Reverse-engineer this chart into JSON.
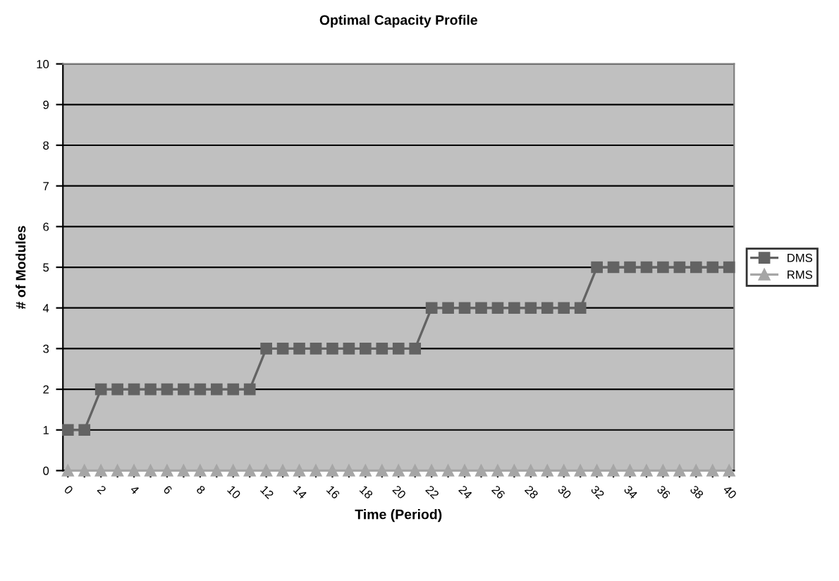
{
  "chart_data": {
    "type": "line",
    "title": "Optimal Capacity Profile",
    "xlabel": "Time (Period)",
    "ylabel": "# of Modules",
    "categories": [
      "0",
      null,
      "2",
      null,
      "4",
      null,
      "6",
      null,
      "8",
      null,
      "10",
      null,
      "12",
      null,
      "14",
      null,
      "16",
      null,
      "18",
      null,
      "20",
      null,
      "22",
      null,
      "24",
      null,
      "26",
      null,
      "28",
      null,
      "30",
      null,
      "32",
      null,
      "34",
      null,
      "36",
      null,
      "38",
      null,
      "40"
    ],
    "series": [
      {
        "name": "DMS",
        "color": "#636363",
        "marker": "square",
        "values": [
          1,
          1,
          2,
          2,
          2,
          2,
          2,
          2,
          2,
          2,
          2,
          2,
          3,
          3,
          3,
          3,
          3,
          3,
          3,
          3,
          3,
          3,
          4,
          4,
          4,
          4,
          4,
          4,
          4,
          4,
          4,
          4,
          5,
          5,
          5,
          5,
          5,
          5,
          5,
          5,
          5
        ]
      },
      {
        "name": "RMS",
        "color": "#a6a6a6",
        "marker": "triangle",
        "values": [
          0,
          0,
          0,
          0,
          0,
          0,
          0,
          0,
          0,
          0,
          0,
          0,
          0,
          0,
          0,
          0,
          0,
          0,
          0,
          0,
          0,
          0,
          0,
          0,
          0,
          0,
          0,
          0,
          0,
          0,
          0,
          0,
          0,
          0,
          0,
          0,
          0,
          0,
          0,
          0,
          0
        ]
      }
    ],
    "ylim": [
      0,
      10
    ],
    "yticks": [
      0,
      1,
      2,
      3,
      4,
      5,
      6,
      7,
      8,
      9,
      10
    ],
    "grid": "y",
    "legend": "right",
    "line_style": "solid"
  }
}
